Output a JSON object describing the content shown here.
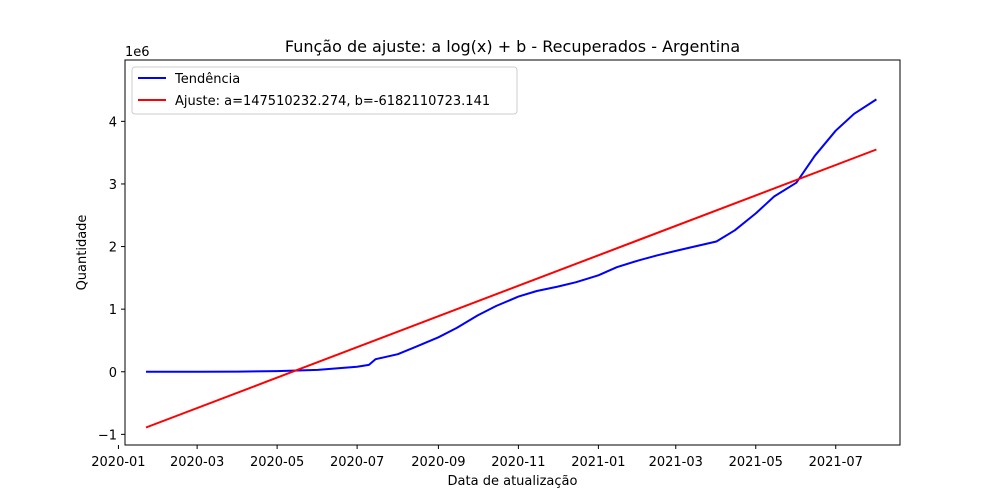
{
  "chart_data": {
    "type": "line",
    "title": "Função de ajuste: a log(x) + b - Recuperados - Argentina",
    "xlabel": "Data de atualização",
    "ylabel": "Quantidade",
    "y_offset_label": "1e6",
    "y_scale": 1000000,
    "xlim": [
      "2020-01-06",
      "2021-08-19"
    ],
    "ylim": [
      -1.17,
      4.98
    ],
    "x_ticks": [
      "2020-01-01",
      "2020-03-01",
      "2020-05-01",
      "2020-07-01",
      "2020-09-01",
      "2020-11-01",
      "2021-01-01",
      "2021-03-01",
      "2021-05-01",
      "2021-07-01"
    ],
    "x_tick_labels": [
      "2020-01",
      "2020-03",
      "2020-05",
      "2020-07",
      "2020-09",
      "2020-11",
      "2021-01",
      "2021-03",
      "2021-05",
      "2021-07"
    ],
    "y_ticks": [
      -1,
      0,
      1,
      2,
      3,
      4
    ],
    "y_tick_labels": [
      "−1",
      "0",
      "1",
      "2",
      "3",
      "4"
    ],
    "legend_position": "top-left",
    "grid": false,
    "series": [
      {
        "name": "Tendência",
        "color": "#0000ff",
        "x": [
          "2020-01-22",
          "2020-03-01",
          "2020-04-01",
          "2020-05-01",
          "2020-06-01",
          "2020-07-01",
          "2020-07-10",
          "2020-07-15",
          "2020-08-01",
          "2020-08-15",
          "2020-09-01",
          "2020-09-15",
          "2020-10-01",
          "2020-10-15",
          "2020-11-01",
          "2020-11-15",
          "2020-12-01",
          "2020-12-15",
          "2021-01-01",
          "2021-01-15",
          "2021-02-01",
          "2021-02-15",
          "2021-03-01",
          "2021-03-15",
          "2021-04-01",
          "2021-04-15",
          "2021-05-01",
          "2021-05-15",
          "2021-06-01",
          "2021-06-15",
          "2021-07-01",
          "2021-07-15",
          "2021-08-01"
        ],
        "y": [
          0.0,
          0.0,
          0.002,
          0.01,
          0.03,
          0.08,
          0.11,
          0.2,
          0.28,
          0.4,
          0.55,
          0.7,
          0.9,
          1.05,
          1.2,
          1.29,
          1.36,
          1.43,
          1.54,
          1.67,
          1.78,
          1.86,
          1.93,
          2.0,
          2.08,
          2.26,
          2.53,
          2.8,
          3.02,
          3.45,
          3.85,
          4.12,
          4.35
        ]
      },
      {
        "name": "Ajuste: a=147510232.274, b=-6182110723.141",
        "color": "#ff0000",
        "x": [
          "2020-01-22",
          "2021-08-01"
        ],
        "y": [
          -0.89,
          3.55
        ]
      }
    ]
  }
}
